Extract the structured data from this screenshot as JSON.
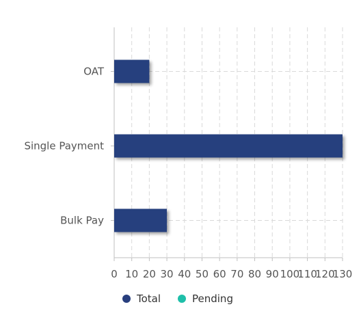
{
  "chart_data": {
    "type": "bar",
    "orientation": "horizontal",
    "categories": [
      "OAT",
      "Single Payment",
      "Bulk Pay"
    ],
    "series": [
      {
        "name": "Total",
        "values": [
          20,
          130,
          30
        ],
        "color": "#283f7e"
      },
      {
        "name": "Pending",
        "values": [
          0,
          0,
          0
        ],
        "color": "#1ebfa9"
      }
    ],
    "x_ticks": [
      "0",
      "10",
      "20",
      "30",
      "40",
      "50",
      "60",
      "70",
      "80",
      "90",
      "100",
      "110",
      "120",
      "130"
    ],
    "xlim": [
      0,
      130
    ],
    "grid": true,
    "legend_position": "bottom",
    "title": "",
    "xlabel": "",
    "ylabel": ""
  }
}
